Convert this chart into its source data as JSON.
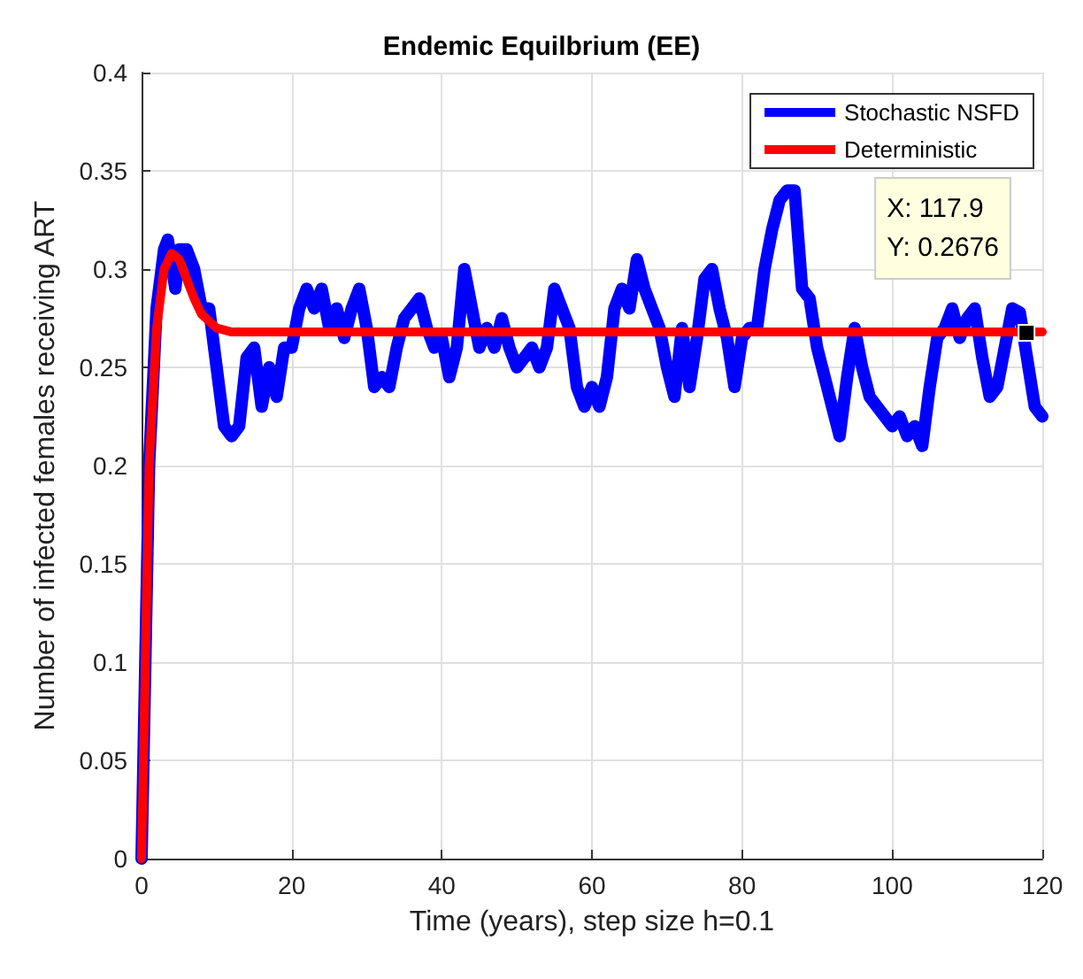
{
  "chart_data": {
    "type": "line",
    "title": "Endemic Equilbrium (EE)",
    "xlabel": "Time (years), step size h=0.1",
    "ylabel": "Number of infected females receiving ART",
    "xlim": [
      0,
      120
    ],
    "xticks": [
      0,
      20,
      40,
      60,
      80,
      100,
      120
    ],
    "ylim": [
      0,
      0.4
    ],
    "yticks": [
      0,
      0.05,
      0.1,
      0.15,
      0.2,
      0.25,
      0.3,
      0.35,
      0.4
    ],
    "grid": true,
    "legend": "top right",
    "marker": "none",
    "line_style": "solid",
    "series": [
      {
        "name": "Stochastic NSFD",
        "color": "#0000ff",
        "x": [
          0,
          1,
          2,
          3,
          3.5,
          4.5,
          5,
          6,
          7,
          8,
          9,
          10,
          11,
          12,
          13,
          14,
          15,
          16,
          17,
          18,
          19,
          20,
          21,
          22,
          23,
          24,
          25,
          26,
          27,
          28,
          29,
          30,
          31,
          32,
          33,
          34,
          35,
          36,
          37,
          38,
          39,
          40,
          41,
          42,
          43,
          44,
          45,
          46,
          47,
          48,
          49,
          50,
          51,
          52,
          53,
          54,
          55,
          56,
          57,
          58,
          59,
          60,
          61,
          62,
          63,
          64,
          65,
          66,
          67,
          68,
          69,
          70,
          71,
          72,
          73,
          74,
          75,
          76,
          77,
          78,
          79,
          80,
          81,
          82,
          83,
          84,
          85,
          86,
          87,
          88,
          89,
          90,
          91,
          92,
          93,
          94,
          95,
          96,
          97,
          98,
          99,
          100,
          101,
          102,
          103,
          104,
          105,
          106,
          107,
          108,
          109,
          110,
          111,
          112,
          113,
          114,
          115,
          116,
          117,
          119,
          120
        ],
        "values": [
          0,
          0.2,
          0.28,
          0.31,
          0.315,
          0.29,
          0.31,
          0.31,
          0.3,
          0.28,
          0.28,
          0.25,
          0.22,
          0.215,
          0.22,
          0.255,
          0.26,
          0.23,
          0.25,
          0.235,
          0.26,
          0.26,
          0.28,
          0.29,
          0.28,
          0.29,
          0.27,
          0.28,
          0.265,
          0.28,
          0.29,
          0.27,
          0.24,
          0.245,
          0.24,
          0.26,
          0.275,
          0.28,
          0.285,
          0.27,
          0.26,
          0.265,
          0.245,
          0.26,
          0.3,
          0.28,
          0.26,
          0.27,
          0.26,
          0.275,
          0.26,
          0.25,
          0.255,
          0.26,
          0.25,
          0.26,
          0.29,
          0.28,
          0.27,
          0.24,
          0.23,
          0.24,
          0.23,
          0.245,
          0.28,
          0.29,
          0.28,
          0.305,
          0.29,
          0.28,
          0.27,
          0.25,
          0.235,
          0.27,
          0.24,
          0.265,
          0.295,
          0.3,
          0.28,
          0.265,
          0.24,
          0.265,
          0.27,
          0.27,
          0.3,
          0.32,
          0.335,
          0.34,
          0.34,
          0.29,
          0.285,
          0.26,
          0.245,
          0.23,
          0.215,
          0.245,
          0.27,
          0.25,
          0.235,
          0.23,
          0.225,
          0.22,
          0.225,
          0.215,
          0.22,
          0.21,
          0.24,
          0.265,
          0.27,
          0.28,
          0.265,
          0.275,
          0.28,
          0.255,
          0.235,
          0.24,
          0.26,
          0.28,
          0.278,
          0.23,
          0.225
        ]
      },
      {
        "name": "Deterministic",
        "color": "#ff0000",
        "x": [
          0,
          0.5,
          1,
          2,
          3,
          4,
          5,
          6,
          7,
          8,
          10,
          12,
          15,
          120
        ],
        "values": [
          0,
          0.1,
          0.2,
          0.27,
          0.3,
          0.308,
          0.305,
          0.295,
          0.285,
          0.277,
          0.27,
          0.268,
          0.268,
          0.268
        ]
      }
    ],
    "annotations": [
      {
        "text": "X: 117.9\nY: 0.2676",
        "x": 117.9,
        "y": 0.2676
      }
    ]
  }
}
